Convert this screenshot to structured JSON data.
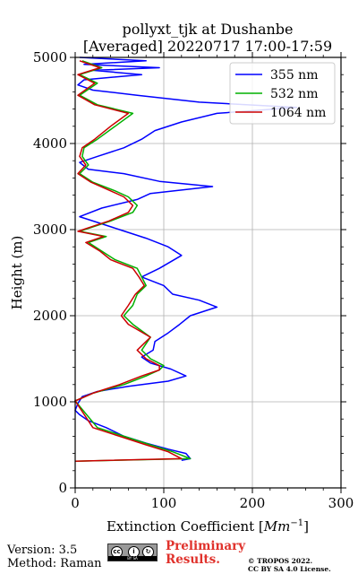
{
  "chart_data": {
    "type": "line",
    "title": "pollyxt_tjk at Dushanbe",
    "subtitle": "[Averaged] 20220717 17:00-17:59",
    "xlabel": "Extinction Coefficient [",
    "xlabel_math": "Mm",
    "xlabel_exp": "−1",
    "xlabel_close": "]",
    "ylabel": "Height (m)",
    "xlim": [
      0,
      300
    ],
    "ylim": [
      0,
      5000
    ],
    "xticks": [
      0,
      100,
      200,
      300
    ],
    "yticks": [
      0,
      1000,
      2000,
      3000,
      4000,
      5000
    ],
    "grid": true,
    "legend_position": "top-right",
    "series": [
      {
        "name": "355 nm",
        "color": "#0000ff",
        "x": [
          120,
          130,
          125,
          105,
          80,
          55,
          35,
          15,
          5,
          0,
          3,
          8,
          25,
          60,
          105,
          125,
          108,
          85,
          75,
          88,
          90,
          105,
          118,
          130,
          160,
          140,
          110,
          100,
          75,
          95,
          120,
          105,
          80,
          50,
          20,
          5,
          30,
          70,
          85,
          155,
          95,
          55,
          15,
          5,
          25,
          55,
          75,
          90,
          120,
          160,
          250,
          140,
          70,
          20,
          3,
          10,
          75,
          20,
          95,
          10,
          80,
          5
        ],
        "y": [
          320,
          340,
          400,
          450,
          520,
          600,
          700,
          780,
          850,
          900,
          980,
          1060,
          1120,
          1180,
          1240,
          1300,
          1380,
          1450,
          1520,
          1600,
          1700,
          1800,
          1900,
          2000,
          2100,
          2180,
          2250,
          2350,
          2450,
          2550,
          2700,
          2800,
          2900,
          3000,
          3100,
          3150,
          3250,
          3350,
          3420,
          3500,
          3560,
          3650,
          3700,
          3780,
          3850,
          3950,
          4050,
          4150,
          4250,
          4350,
          4420,
          4480,
          4560,
          4620,
          4680,
          4740,
          4800,
          4850,
          4880,
          4920,
          4960,
          5000
        ]
      },
      {
        "name": "532 nm",
        "color": "#00b000",
        "x": [
          0,
          130,
          110,
          85,
          55,
          25,
          0,
          20,
          55,
          80,
          95,
          100,
          85,
          75,
          85,
          65,
          55,
          65,
          70,
          80,
          75,
          70,
          45,
          30,
          15,
          35,
          5,
          40,
          65,
          70,
          60,
          45,
          20,
          5,
          15,
          8,
          10,
          25,
          45,
          65,
          25,
          5,
          25,
          5,
          30,
          8
        ],
        "y": [
          310,
          340,
          420,
          500,
          600,
          700,
          1010,
          1100,
          1200,
          1300,
          1370,
          1420,
          1500,
          1600,
          1750,
          1900,
          2000,
          2120,
          2250,
          2350,
          2450,
          2550,
          2650,
          2750,
          2850,
          2920,
          2980,
          3100,
          3200,
          3280,
          3380,
          3450,
          3550,
          3650,
          3750,
          3850,
          3950,
          4050,
          4200,
          4350,
          4450,
          4560,
          4700,
          4800,
          4880,
          4960
        ]
      },
      {
        "name": "1064 nm",
        "color": "#cc0000",
        "x": [
          0,
          120,
          105,
          80,
          50,
          20,
          0,
          20,
          50,
          75,
          95,
          95,
          80,
          70,
          85,
          60,
          52,
          60,
          68,
          78,
          72,
          65,
          40,
          28,
          12,
          32,
          3,
          38,
          60,
          65,
          55,
          40,
          18,
          3,
          12,
          5,
          8,
          22,
          40,
          60,
          22,
          3,
          22,
          3,
          28,
          5
        ],
        "y": [
          310,
          340,
          420,
          500,
          600,
          700,
          1010,
          1100,
          1200,
          1300,
          1370,
          1420,
          1500,
          1600,
          1750,
          1900,
          2000,
          2120,
          2250,
          2350,
          2450,
          2550,
          2650,
          2750,
          2850,
          2920,
          2980,
          3100,
          3200,
          3280,
          3380,
          3450,
          3550,
          3650,
          3750,
          3850,
          3950,
          4050,
          4200,
          4350,
          4450,
          4560,
          4700,
          4800,
          4880,
          4960
        ]
      }
    ]
  },
  "footer": {
    "version": "Version: 3.5",
    "method": "Method: Raman",
    "preliminary_line1": "Preliminary",
    "preliminary_line2": "Results.",
    "copyright_line1": "© TROPOS 2022.",
    "copyright_line2": "CC BY SA 4.0 License.",
    "license_badge": "BY SA"
  }
}
